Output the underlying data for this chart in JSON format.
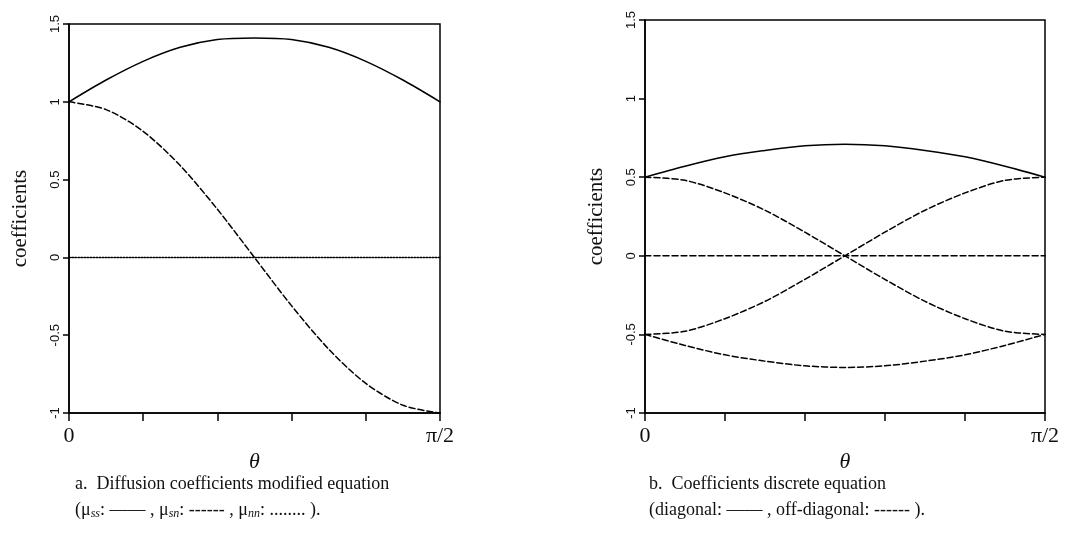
{
  "chart_data": [
    {
      "type": "line",
      "xlabel": "θ",
      "ylabel": "coefficients",
      "xlim": [
        0,
        1.571
      ],
      "xticks": [
        0,
        {
          "value": 0.314,
          "label": null
        },
        {
          "value": 0.628,
          "label": null
        },
        {
          "value": 0.942,
          "label": null
        },
        {
          "value": 1.257,
          "label": null
        },
        {
          "value": 1.571,
          "label": "π/2"
        }
      ],
      "ylim": [
        -1,
        1.5
      ],
      "yticks": [
        -1,
        -0.5,
        0,
        0.5,
        1,
        1.5
      ],
      "marker": "none",
      "x": [
        0,
        0.157,
        0.314,
        0.471,
        0.628,
        0.785,
        0.942,
        1.1,
        1.257,
        1.414,
        1.571
      ],
      "series": [
        {
          "color": "#000000",
          "line_style": "solid",
          "values": [
            1,
            1.14,
            1.26,
            1.35,
            1.4,
            1.41,
            1.4,
            1.35,
            1.26,
            1.14,
            1
          ]
        },
        {
          "color": "#000000",
          "line_style": "dashed",
          "values": [
            1,
            0.95,
            0.81,
            0.59,
            0.31,
            0,
            -0.31,
            -0.59,
            -0.81,
            -0.95,
            -1
          ]
        },
        {
          "color": "#000000",
          "line_style": "dotted",
          "values": [
            0,
            0,
            0,
            0,
            0,
            0,
            0,
            0,
            0,
            0,
            0
          ]
        }
      ],
      "annotations": [
        "a.  Diffusion coefficients modified equation",
        "(μ$_{ss}$: —— , μ$_{sn}$: ------ , μ$_{nn}$: ........ )."
      ]
    },
    {
      "type": "line",
      "xlabel": "θ",
      "ylabel": "coefficients",
      "xlim": [
        0,
        1.571
      ],
      "xticks": [
        0,
        {
          "value": 0.314,
          "label": null
        },
        {
          "value": 0.628,
          "label": null
        },
        {
          "value": 0.942,
          "label": null
        },
        {
          "value": 1.257,
          "label": null
        },
        {
          "value": 1.571,
          "label": "π/2"
        }
      ],
      "ylim": [
        -1,
        1.5
      ],
      "yticks": [
        -1,
        -0.5,
        0,
        0.5,
        1,
        1.5
      ],
      "marker": "none",
      "x": [
        0,
        0.157,
        0.314,
        0.471,
        0.628,
        0.785,
        0.942,
        1.1,
        1.257,
        1.414,
        1.571
      ],
      "series": [
        {
          "color": "#000000",
          "line_style": "solid",
          "values": [
            0.5,
            0.57,
            0.63,
            0.67,
            0.7,
            0.71,
            0.7,
            0.67,
            0.63,
            0.57,
            0.5
          ]
        },
        {
          "color": "#000000",
          "line_style": "dashed",
          "values": [
            0.5,
            0.48,
            0.4,
            0.29,
            0.15,
            0,
            -0.15,
            -0.29,
            -0.4,
            -0.48,
            -0.5
          ]
        },
        {
          "color": "#000000",
          "line_style": "dashed",
          "values": [
            -0.5,
            -0.48,
            -0.4,
            -0.29,
            -0.15,
            0,
            0.15,
            0.29,
            0.4,
            0.48,
            0.5
          ]
        },
        {
          "color": "#000000",
          "line_style": "dashed",
          "values": [
            0,
            0,
            0,
            0,
            0,
            0,
            0,
            0,
            0,
            0,
            0
          ]
        },
        {
          "color": "#000000",
          "line_style": "dashed",
          "values": [
            -0.5,
            -0.57,
            -0.63,
            -0.67,
            -0.7,
            -0.71,
            -0.7,
            -0.67,
            -0.63,
            -0.57,
            -0.5
          ]
        }
      ],
      "annotations": [
        "b.  Coefficients discrete equation",
        "(diagonal: —— , off-diagonal: ------ )."
      ]
    }
  ]
}
